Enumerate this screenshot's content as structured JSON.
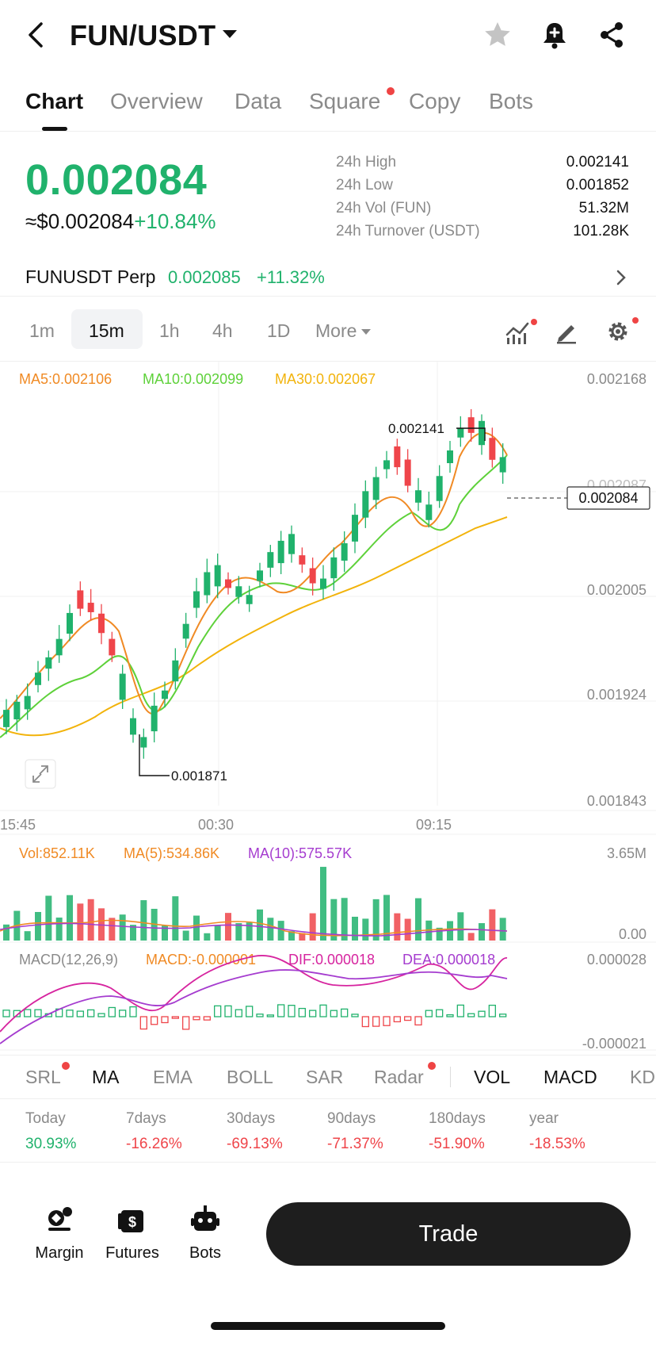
{
  "header": {
    "pair": "FUN/USDT"
  },
  "tabs": [
    {
      "label": "Chart",
      "active": true
    },
    {
      "label": "Overview"
    },
    {
      "label": "Data"
    },
    {
      "label": "Square",
      "dot": true
    },
    {
      "label": "Copy"
    },
    {
      "label": "Bots"
    }
  ],
  "price": {
    "last": "0.002084",
    "usd": "≈$0.002084",
    "change": "+10.84%"
  },
  "stats": [
    {
      "label": "24h High",
      "value": "0.002141"
    },
    {
      "label": "24h Low",
      "value": "0.001852"
    },
    {
      "label": "24h Vol (FUN)",
      "value": "51.32M"
    },
    {
      "label": "24h Turnover (USDT)",
      "value": "101.28K"
    }
  ],
  "perp": {
    "name": "FUNUSDT Perp",
    "price": "0.002085",
    "change": "+11.32%"
  },
  "intervals": [
    "1m",
    "15m",
    "1h",
    "4h",
    "1D",
    "More"
  ],
  "active_interval": "15m",
  "chart": {
    "ma_legend": {
      "ma5": "MA5:0.002106",
      "ma10": "MA10:0.002099",
      "ma30": "MA30:0.002067"
    },
    "price_axis": [
      "0.002168",
      "0.002087",
      "0.002005",
      "0.001924",
      "0.001843"
    ],
    "time_axis": [
      "15:45",
      "00:30",
      "09:15"
    ],
    "high_label": "0.002141",
    "low_label": "0.001871",
    "last_price_tag": "0.002084",
    "vol_legend": {
      "vol": "Vol:852.11K",
      "ma5": "MA(5):534.86K",
      "ma10": "MA(10):575.57K"
    },
    "vol_axis": [
      "3.65M",
      "0.00"
    ],
    "macd_legend": {
      "title": "MACD(12,26,9)",
      "macd": "MACD:-0.000001",
      "dif": "DIF:0.000018",
      "dea": "DEA:0.000018"
    },
    "macd_axis": [
      "0.000028",
      "-0.000021"
    ]
  },
  "colors": {
    "up": "#20b26c",
    "down": "#ef454a",
    "ma5": "#f08a24",
    "ma10": "#5ed13a",
    "ma30": "#f2b30b",
    "dif": "#d6249f",
    "dea": "#a53ccf"
  },
  "indicator_tabs": [
    {
      "label": "SRL",
      "dot": true
    },
    {
      "label": "MA",
      "dark": true
    },
    {
      "label": "EMA"
    },
    {
      "label": "BOLL"
    },
    {
      "label": "SAR"
    },
    {
      "label": "Radar",
      "dot": true
    },
    {
      "label": "VOL",
      "dark": true
    },
    {
      "label": "MACD",
      "dark": true
    },
    {
      "label": "KD"
    }
  ],
  "performance": [
    {
      "label": "Today",
      "value": "30.93%",
      "up": true
    },
    {
      "label": "7days",
      "value": "-16.26%"
    },
    {
      "label": "30days",
      "value": "-69.13%"
    },
    {
      "label": "90days",
      "value": "-71.37%"
    },
    {
      "label": "180days",
      "value": "-51.90%"
    },
    {
      "label": "year",
      "value": "-18.53%"
    }
  ],
  "bottom_nav": [
    {
      "label": "Margin",
      "icon": "margin-icon"
    },
    {
      "label": "Futures",
      "icon": "futures-icon"
    },
    {
      "label": "Bots",
      "icon": "bots-icon"
    }
  ],
  "trade_label": "Trade"
}
